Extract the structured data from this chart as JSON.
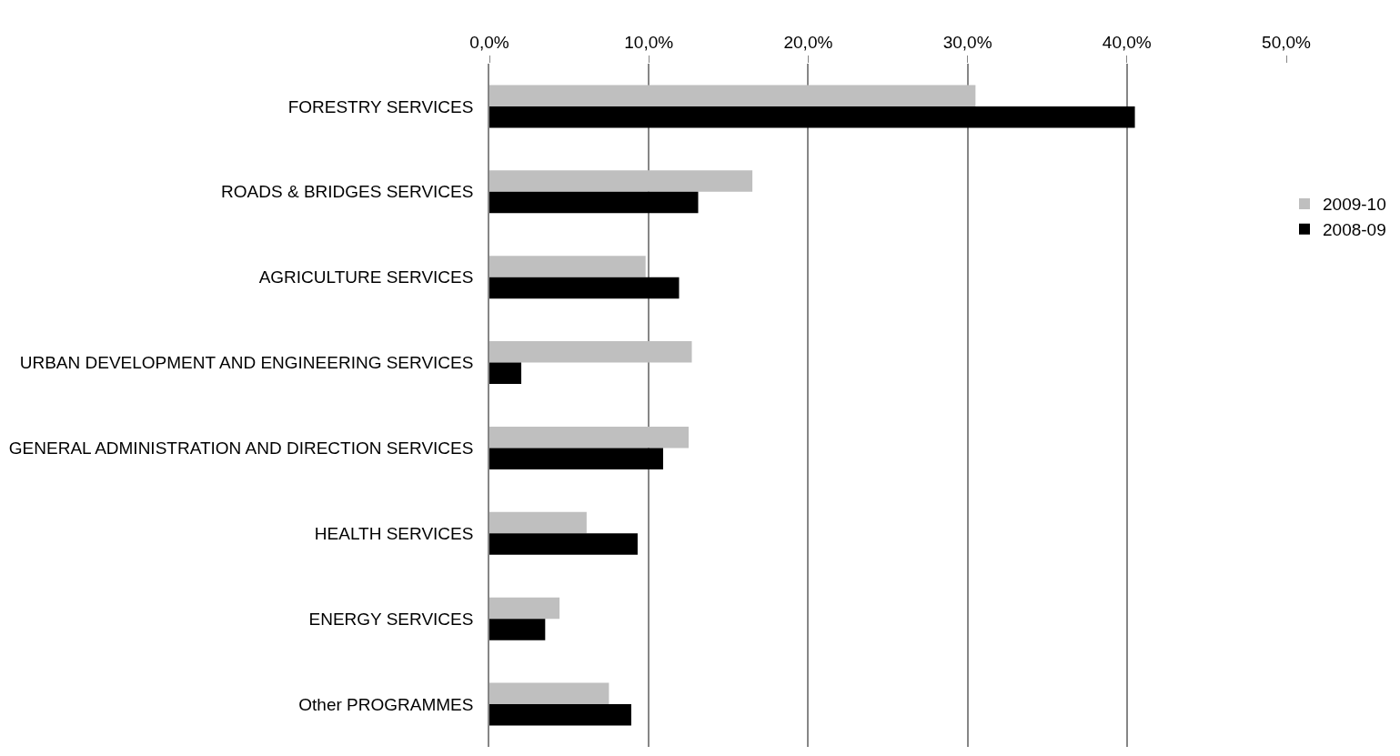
{
  "chart_data": {
    "type": "bar",
    "orientation": "horizontal",
    "categories": [
      "FORESTRY SERVICES",
      "ROADS & BRIDGES SERVICES",
      "AGRICULTURE SERVICES",
      "URBAN DEVELOPMENT AND ENGINEERING SERVICES",
      "GENERAL ADMINISTRATION AND DIRECTION SERVICES",
      "HEALTH SERVICES",
      "ENERGY SERVICES",
      "Other PROGRAMMES"
    ],
    "series": [
      {
        "name": "2009-10",
        "color": "#bfbfbf",
        "values": [
          30.5,
          16.5,
          9.8,
          12.7,
          12.5,
          6.1,
          4.4,
          7.5
        ]
      },
      {
        "name": "2008-09",
        "color": "#000000",
        "values": [
          40.5,
          13.1,
          11.9,
          2.0,
          10.9,
          9.3,
          3.5,
          8.9
        ]
      }
    ],
    "xlim": [
      0,
      50
    ],
    "xticks": [
      {
        "value": 0,
        "label": "0,0%"
      },
      {
        "value": 10,
        "label": "10,0%"
      },
      {
        "value": 20,
        "label": "20,0%"
      },
      {
        "value": 30,
        "label": "30,0%"
      },
      {
        "value": 40,
        "label": "40,0%"
      },
      {
        "value": 50,
        "label": "50,0%"
      }
    ],
    "grid": "x",
    "legend": "right"
  }
}
